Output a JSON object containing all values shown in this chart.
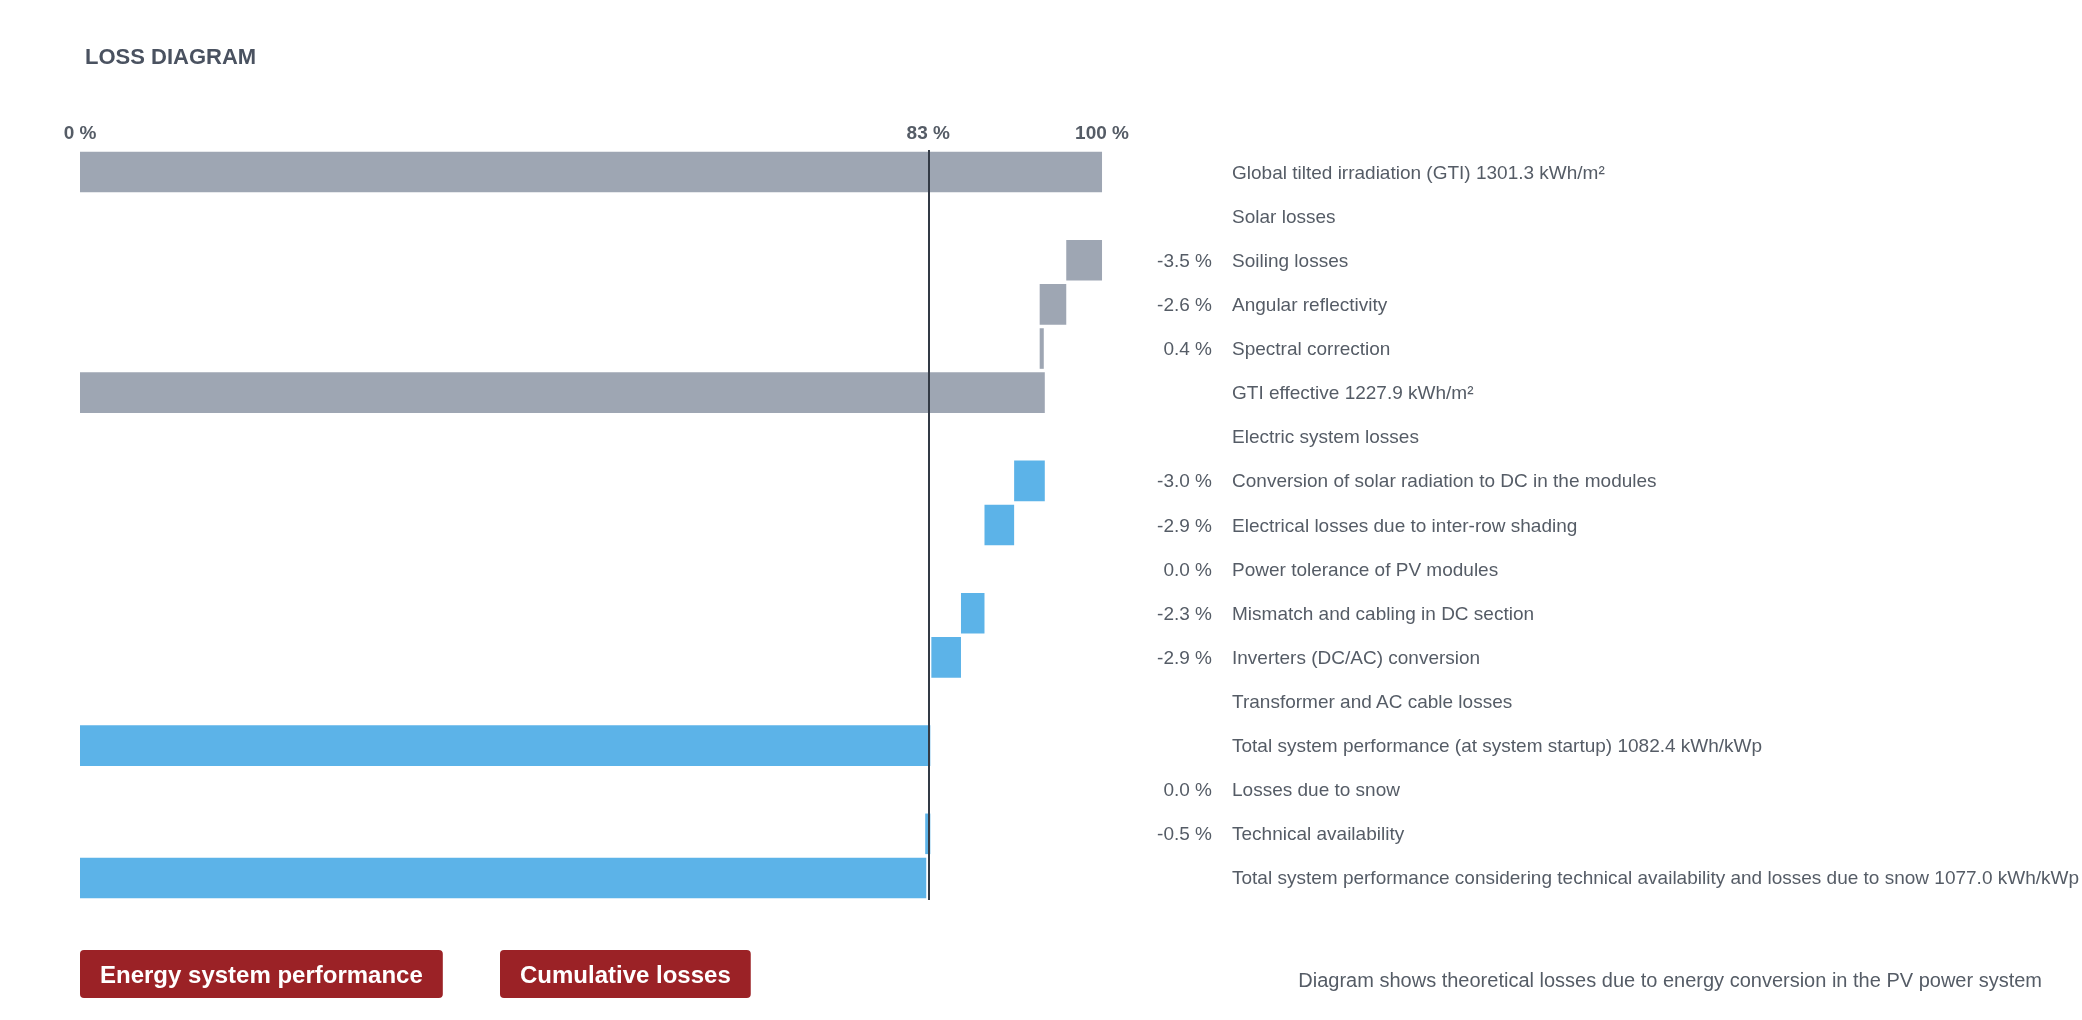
{
  "chart_data": {
    "type": "bar",
    "orientation": "horizontal",
    "title": "LOSS DIAGRAM",
    "categories": [
      "Global tilted irradiation (GTI) 1301.3 kWh/m²",
      "Solar losses",
      "Soiling losses",
      "Angular reflectivity",
      "Spectral correction",
      "GTI effective 1227.9 kWh/m²",
      "Electric system losses",
      "Conversion of solar radiation to DC in the modules",
      "Electrical losses due to inter-row shading",
      "Power tolerance of PV modules",
      "Mismatch and cabling in DC section",
      "Inverters (DC/AC) conversion",
      "Transformer and AC cable losses",
      "Total system performance (at system startup) 1082.4 kWh/kWp",
      "Losses due to snow",
      "Technical availability",
      "Total system performance considering technical availability and losses due to snow 1077.0 kWh/kWp"
    ],
    "values": [
      100,
      null,
      -3.5,
      -2.6,
      0.4,
      94.4,
      null,
      -3.0,
      -2.9,
      0.0,
      -2.3,
      -2.9,
      null,
      83.2,
      0.0,
      -0.5,
      82.8
    ],
    "base": [
      0,
      null,
      100,
      96.5,
      93.9,
      0,
      null,
      94.4,
      91.4,
      null,
      88.5,
      86.2,
      null,
      0,
      null,
      83.2,
      0
    ],
    "colors": [
      "#9ea6b3",
      null,
      "#9ea6b3",
      "#9ea6b3",
      "#9ea6b3",
      "#9ea6b3",
      null,
      "#5cb3e8",
      "#5cb3e8",
      "#5cb3e8",
      "#5cb3e8",
      "#5cb3e8",
      null,
      "#5cb3e8",
      "#5cb3e8",
      "#5cb3e8",
      "#5cb3e8"
    ],
    "value_labels": [
      null,
      null,
      "-3.5 %",
      "-2.6 %",
      "0.4 %",
      null,
      null,
      "-3.0 %",
      "-2.9 %",
      "0.0 %",
      "-2.3 %",
      "-2.9 %",
      null,
      null,
      "0.0 %",
      "-0.5 %",
      null
    ],
    "xlim": [
      0,
      100
    ],
    "xticks": [
      {
        "value": 0,
        "label": "0 %"
      },
      {
        "value": 83,
        "label": "83 %"
      },
      {
        "value": 100,
        "label": "100 %"
      }
    ],
    "ref_lines": [
      {
        "axis": "x",
        "value": 83,
        "color": "#333a45"
      }
    ],
    "annotations": [
      "Energy system performance",
      "Cumulative losses",
      "Diagram shows theoretical losses due to energy conversion in the PV power system"
    ],
    "grid": false
  }
}
